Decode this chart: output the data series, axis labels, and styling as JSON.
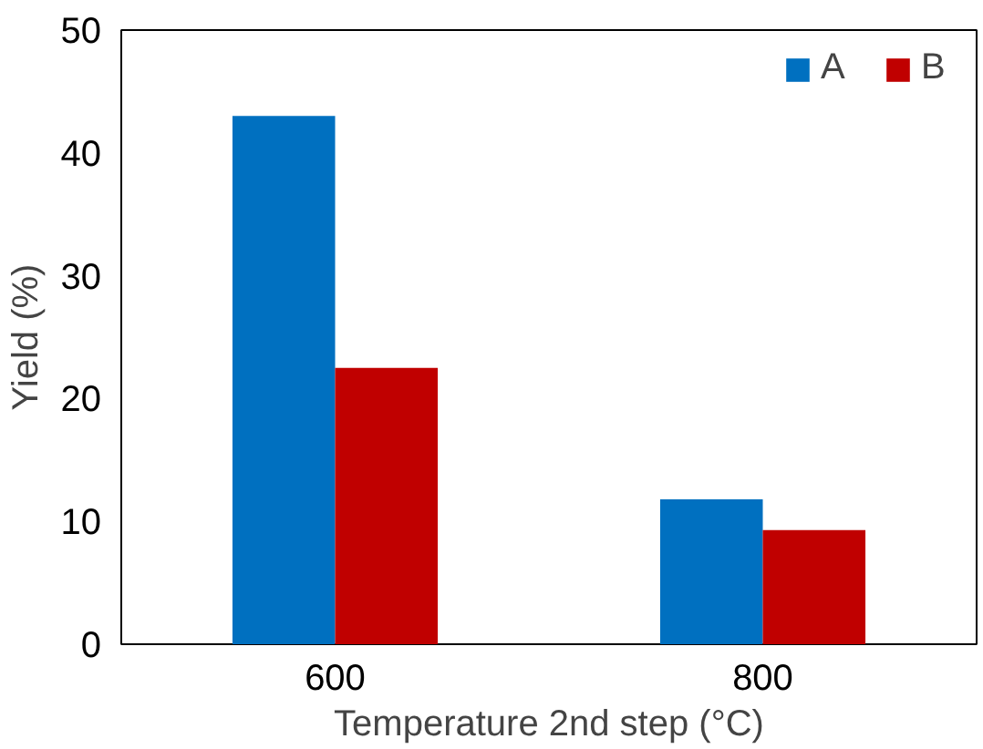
{
  "chart_data": {
    "type": "bar",
    "xlabel": "Temperature 2nd step (°C)",
    "ylabel": "Yield (%)",
    "categories": [
      "600",
      "800"
    ],
    "series": [
      {
        "name": "A",
        "color": "#0070c0",
        "values": [
          43,
          11.8
        ]
      },
      {
        "name": "B",
        "color": "#c00000",
        "values": [
          22.5,
          9.3
        ]
      }
    ],
    "ylim": [
      0,
      50
    ],
    "yticks": [
      0,
      10,
      20,
      30,
      40,
      50
    ],
    "grid": false,
    "legend": "top right"
  }
}
